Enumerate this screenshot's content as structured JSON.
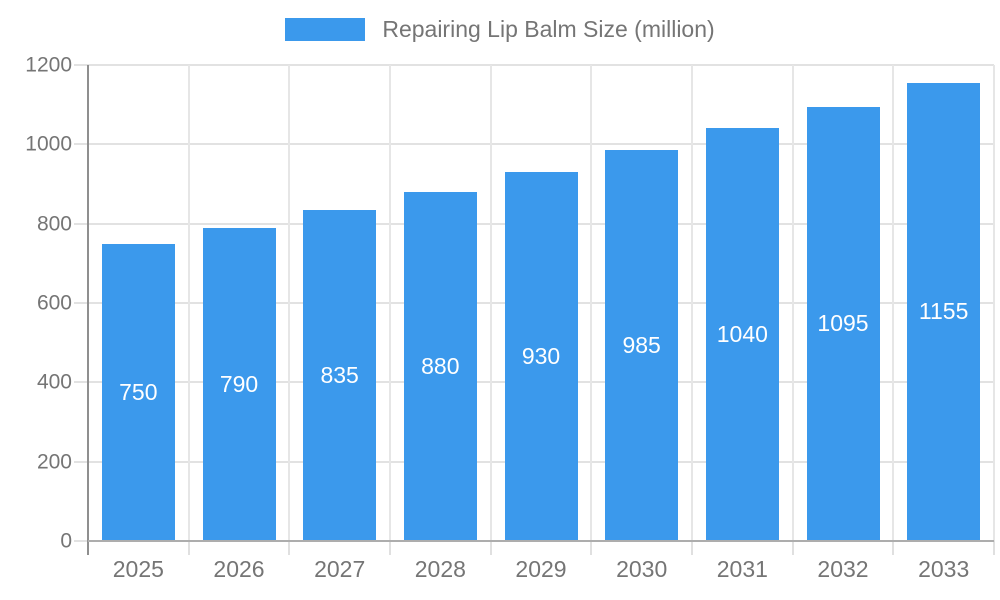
{
  "legend": {
    "label": "Repairing Lip Balm Size (million)"
  },
  "chart_data": {
    "type": "bar",
    "title": "Repairing Lip Balm Size (million)",
    "categories": [
      "2025",
      "2026",
      "2027",
      "2028",
      "2029",
      "2030",
      "2031",
      "2032",
      "2033"
    ],
    "values": [
      750,
      790,
      835,
      880,
      930,
      985,
      1040,
      1095,
      1155
    ],
    "xlabel": "",
    "ylabel": "",
    "ylim": [
      0,
      1200
    ],
    "yticks": [
      0,
      200,
      400,
      600,
      800,
      1000,
      1200
    ],
    "grid": true,
    "legend_position": "top",
    "value_labels": "centered-inside-bars",
    "colors": {
      "bar": "#3B99EC",
      "value_label": "#FFFFFF",
      "axis_text": "#757575",
      "gridline": "#E2E2E2",
      "axis_line": "#8F8F8F",
      "baseline": "#ADADAD",
      "background": "#FFFFFF"
    }
  }
}
